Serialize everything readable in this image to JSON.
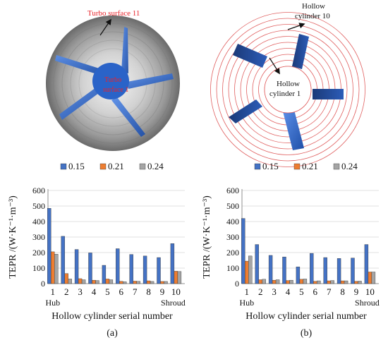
{
  "illustrations": {
    "left": {
      "outer_label": "Turbo surface 11",
      "inner_label_line1": "Turbo",
      "inner_label_line2": "surface 1"
    },
    "right": {
      "outer_label_line1": "Hollow",
      "outer_label_line2": "cylinder 10",
      "inner_label_line1": "Hollow",
      "inner_label_line2": "cylinder 1"
    }
  },
  "colors": {
    "series_015": "#4472C4",
    "series_021": "#ED7D31",
    "series_024": "#A5A5A5",
    "label_red": "#E8232A",
    "blade_blue": "#2F6FD6",
    "ring_red": "#E06060"
  },
  "chart_data": [
    {
      "type": "bar",
      "panel_label": "(a)",
      "categories": [
        "1",
        "2",
        "3",
        "4",
        "5",
        "6",
        "7",
        "8",
        "9",
        "10"
      ],
      "category_sublabels": {
        "first": "Hub",
        "last": "Shroud"
      },
      "series": [
        {
          "name": "0.15",
          "values": [
            485,
            305,
            220,
            198,
            118,
            225,
            188,
            178,
            168,
            258
          ]
        },
        {
          "name": "0.21",
          "values": [
            205,
            65,
            32,
            22,
            30,
            15,
            16,
            18,
            14,
            80
          ]
        },
        {
          "name": "0.24",
          "values": [
            190,
            30,
            25,
            20,
            25,
            12,
            15,
            14,
            14,
            78
          ]
        }
      ],
      "xlabel": "Hollow cylinder serial number",
      "ylabel": "TEPR /(W·K⁻¹·m⁻³)",
      "ylim": [
        0,
        600
      ],
      "yticks": [
        "0",
        "100",
        "200",
        "300",
        "400",
        "500",
        "600"
      ],
      "grid": true,
      "legend_position": "top"
    },
    {
      "type": "bar",
      "panel_label": "(b)",
      "categories": [
        "1",
        "2",
        "3",
        "4",
        "5",
        "6",
        "7",
        "8",
        "9",
        "10"
      ],
      "category_sublabels": {
        "first": "Hub",
        "last": "Shroud"
      },
      "series": [
        {
          "name": "0.15",
          "values": [
            420,
            252,
            182,
            172,
            108,
            195,
            168,
            162,
            165,
            252
          ]
        },
        {
          "name": "0.21",
          "values": [
            145,
            25,
            22,
            20,
            28,
            15,
            18,
            18,
            15,
            75
          ]
        },
        {
          "name": "0.24",
          "values": [
            178,
            28,
            25,
            22,
            30,
            18,
            20,
            18,
            16,
            75
          ]
        }
      ],
      "xlabel": "Hollow cylinder serial number",
      "ylabel": "TEPR /(W·K⁻¹·m⁻³)",
      "ylim": [
        0,
        600
      ],
      "yticks": [
        "0",
        "100",
        "200",
        "300",
        "400",
        "500",
        "600"
      ],
      "grid": true,
      "legend_position": "top"
    }
  ]
}
